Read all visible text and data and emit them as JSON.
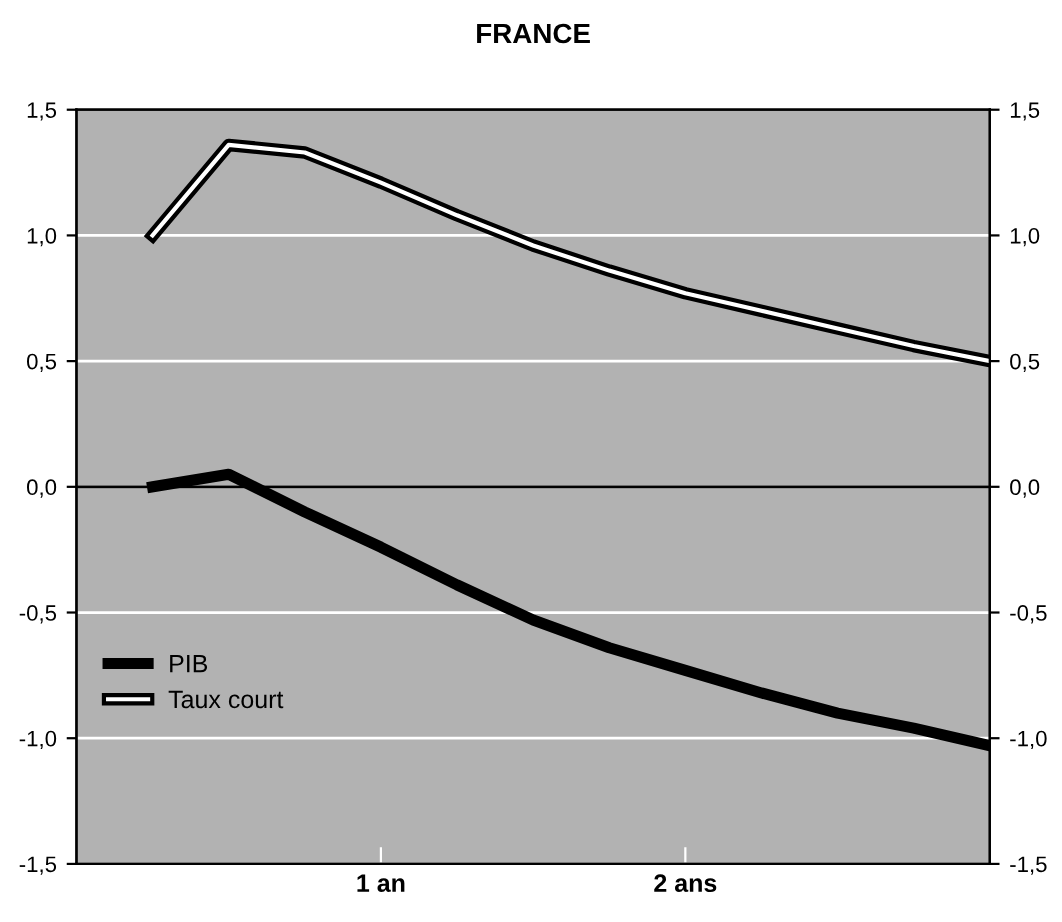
{
  "chart_data": {
    "type": "line",
    "title": "FRANCE",
    "categories": [
      null,
      null,
      null,
      "1 an",
      null,
      null,
      null,
      "2 ans",
      null,
      null,
      null,
      null
    ],
    "series": [
      {
        "name": "PIB",
        "color": "#000000",
        "values": [
          0,
          0.05,
          -0.1,
          -0.24,
          -0.39,
          -0.53,
          -0.64,
          -0.73,
          -0.82,
          -0.9,
          -0.96,
          -1.03
        ]
      },
      {
        "name": "Taux court",
        "color": "#000000",
        "values": [
          1.0,
          1.36,
          1.33,
          1.21,
          1.08,
          0.96,
          0.86,
          0.77,
          0.7,
          0.63,
          0.56,
          0.5
        ]
      }
    ],
    "ylim": [
      -1.5,
      1.5
    ],
    "yticks": [
      {
        "value": -1.5,
        "label": "-1,5"
      },
      {
        "value": -1.0,
        "label": "-1,0"
      },
      {
        "value": -0.5,
        "label": "-0,5"
      },
      {
        "value": 0,
        "label": "0,0"
      },
      {
        "value": 0.5,
        "label": "0,5"
      },
      {
        "value": 1.0,
        "label": "1,0"
      },
      {
        "value": 1.5,
        "label": "1,5"
      }
    ],
    "y2lim": [
      -1.5,
      1.5
    ],
    "y2ticks": [
      {
        "value": -1.5,
        "label": "-1,5"
      },
      {
        "value": -1.0,
        "label": "-1,0"
      },
      {
        "value": -0.5,
        "label": "-0,5"
      },
      {
        "value": 0,
        "label": "0,0"
      },
      {
        "value": 0.5,
        "label": "0,5"
      },
      {
        "value": 1.0,
        "label": "1,0"
      },
      {
        "value": 1.5,
        "label": "1,5"
      }
    ],
    "ref_lines": [
      {
        "axis": "y",
        "value": 0,
        "color": "#000000"
      }
    ],
    "grid": "y",
    "legend": "bottom left",
    "marker": "none"
  }
}
